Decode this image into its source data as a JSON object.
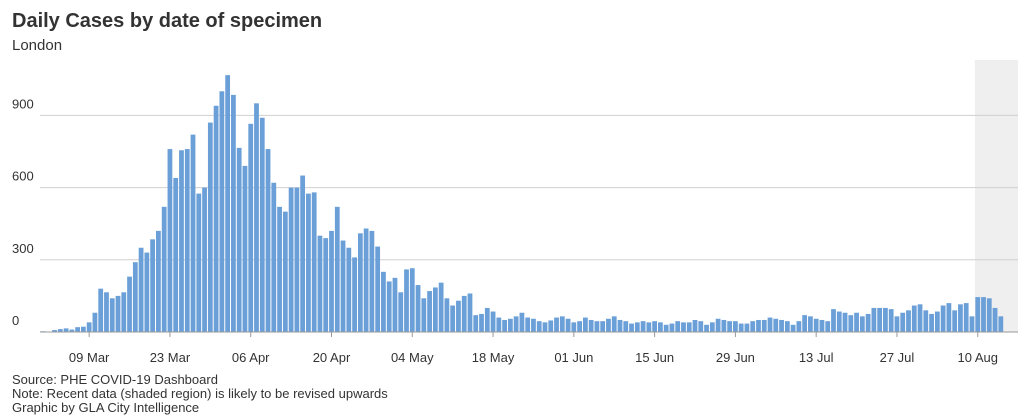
{
  "chart_data": {
    "type": "bar",
    "title": "Daily Cases by date of specimen",
    "subtitle": "London",
    "notes": [
      "Source: PHE COVID-19 Dashboard",
      "Note: Recent data (shaded region) is likely to be revised upwards",
      "Graphic by GLA City Intelligence"
    ],
    "categories": [
      null,
      null,
      null,
      null,
      null,
      null,
      null,
      null,
      "09 Mar",
      null,
      null,
      null,
      null,
      null,
      null,
      null,
      null,
      null,
      null,
      null,
      null,
      null,
      "23 Mar",
      null,
      null,
      null,
      null,
      null,
      null,
      null,
      null,
      null,
      null,
      null,
      null,
      null,
      "06 Apr",
      null,
      null,
      null,
      null,
      null,
      null,
      null,
      null,
      null,
      null,
      null,
      null,
      null,
      "20 Apr",
      null,
      null,
      null,
      null,
      null,
      null,
      null,
      null,
      null,
      null,
      null,
      null,
      null,
      "04 May",
      null,
      null,
      null,
      null,
      null,
      null,
      null,
      null,
      null,
      null,
      null,
      null,
      null,
      "18 May",
      null,
      null,
      null,
      null,
      null,
      null,
      null,
      null,
      null,
      null,
      null,
      null,
      null,
      "01 Jun",
      null,
      null,
      null,
      null,
      null,
      null,
      null,
      null,
      null,
      null,
      null,
      null,
      null,
      "15 Jun",
      null,
      null,
      null,
      null,
      null,
      null,
      null,
      null,
      null,
      null,
      null,
      null,
      null,
      "29 Jun",
      null,
      null,
      null,
      null,
      null,
      null,
      null,
      null,
      null,
      null,
      null,
      null,
      null,
      "13 Jul",
      null,
      null,
      null,
      null,
      null,
      null,
      null,
      null,
      null,
      null,
      null,
      null,
      null,
      "27 Jul",
      null,
      null,
      null,
      null,
      null,
      null,
      null,
      null,
      null,
      null,
      null,
      null,
      null,
      "10 Aug",
      null,
      null,
      null,
      null
    ],
    "values": [
      3,
      2,
      8,
      12,
      15,
      10,
      20,
      22,
      40,
      80,
      180,
      165,
      140,
      150,
      165,
      230,
      290,
      350,
      330,
      385,
      420,
      520,
      760,
      640,
      755,
      760,
      820,
      575,
      600,
      870,
      940,
      1000,
      1067,
      985,
      765,
      690,
      865,
      950,
      890,
      760,
      620,
      520,
      500,
      600,
      600,
      650,
      575,
      580,
      400,
      390,
      420,
      520,
      380,
      350,
      310,
      410,
      430,
      420,
      355,
      250,
      210,
      225,
      165,
      260,
      265,
      195,
      140,
      170,
      185,
      205,
      140,
      110,
      130,
      150,
      160,
      70,
      75,
      100,
      85,
      60,
      50,
      55,
      65,
      80,
      60,
      55,
      45,
      40,
      48,
      60,
      65,
      55,
      40,
      45,
      60,
      50,
      45,
      45,
      55,
      65,
      50,
      45,
      35,
      40,
      45,
      40,
      45,
      40,
      30,
      35,
      45,
      40,
      40,
      50,
      45,
      30,
      40,
      55,
      50,
      45,
      45,
      35,
      35,
      45,
      50,
      50,
      60,
      55,
      50,
      45,
      30,
      45,
      70,
      65,
      55,
      50,
      45,
      95,
      85,
      80,
      70,
      80,
      65,
      75,
      100,
      100,
      100,
      95,
      65,
      80,
      90,
      110,
      115,
      90,
      75,
      85,
      110,
      120,
      90,
      115,
      120,
      65,
      145,
      145,
      140,
      100,
      65
    ],
    "color": "#6a9fd8",
    "shaded_range": [
      162,
      166
    ],
    "ylim": [
      0,
      1130
    ],
    "yticks": [
      0,
      300,
      600,
      900
    ],
    "grid": true
  }
}
